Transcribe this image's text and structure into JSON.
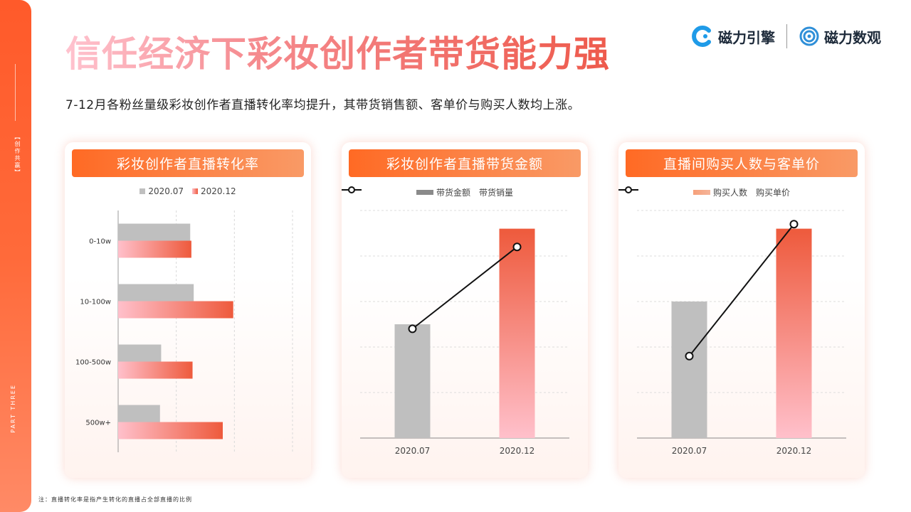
{
  "title": "信任经济下彩妆创作者带货能力强",
  "subtitle": "7-12月各粉丝量级彩妆创作者直播转化率均提升，其带货销售额、客单价与购买人数均上涨。",
  "sidebar": {
    "tag": "【创作共赢】",
    "part": "PART THREE"
  },
  "logos": {
    "left": "磁力引擎",
    "right": "磁力数观"
  },
  "footnote": "注：直播转化率是指产生转化的直播占全部直播的比例",
  "colors": {
    "accent": "#ff6a24",
    "gray": "#bfbfbf",
    "red": "#ee5a3c",
    "pink": "#ffc0cb"
  },
  "panels": [
    {
      "header": "彩妆创作者直播转化率",
      "legend": [
        "2020.07",
        "2020.12"
      ]
    },
    {
      "header": "彩妆创作者直播带货金额",
      "legend": [
        "带货金额",
        "带货销量"
      ]
    },
    {
      "header": "直播间购买人数与客单价",
      "legend": [
        "购买人数",
        "购买单价"
      ]
    }
  ],
  "chart_data": [
    {
      "type": "bar",
      "orientation": "horizontal",
      "categories": [
        "0-10w",
        "10-100w",
        "100-500w",
        "500w+"
      ],
      "series": [
        {
          "name": "2020.07",
          "values": [
            62,
            65,
            37,
            36
          ]
        },
        {
          "name": "2020.12",
          "values": [
            63,
            99,
            64,
            90
          ]
        }
      ],
      "xlim": [
        0,
        150
      ],
      "grid": true,
      "legend": "top"
    },
    {
      "type": "bar+line",
      "categories": [
        "2020.07",
        "2020.12"
      ],
      "series": [
        {
          "name": "带货金额",
          "type": "bar",
          "values": [
            2.5,
            4.6
          ]
        },
        {
          "name": "带货销量",
          "type": "line",
          "values": [
            2.4,
            4.2
          ]
        }
      ],
      "ylim": [
        0,
        5
      ],
      "grid": true,
      "legend": "top"
    },
    {
      "type": "bar+line",
      "categories": [
        "2020.07",
        "2020.12"
      ],
      "series": [
        {
          "name": "购买人数",
          "type": "bar",
          "values": [
            3.0,
            4.6
          ]
        },
        {
          "name": "购买单价",
          "type": "line",
          "values": [
            1.8,
            4.7
          ]
        }
      ],
      "ylim": [
        0,
        5
      ],
      "grid": true,
      "legend": "top"
    }
  ]
}
